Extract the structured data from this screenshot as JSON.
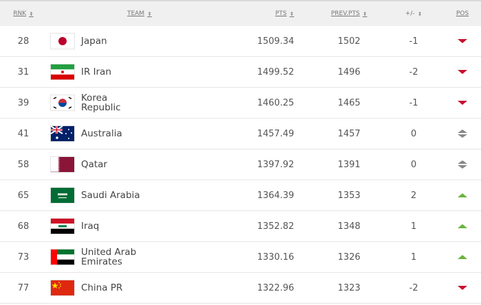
{
  "header": {
    "rnk": "RNK",
    "team": "TEAM",
    "pts": "PTS",
    "prev_pts": "PREV.PTS",
    "diff": "+/-",
    "pos": "POS",
    "sort_icon": "sort-arrows-icon"
  },
  "colors": {
    "down": "#c8102e",
    "up": "#6ab33e",
    "same": "#888888"
  },
  "rows": [
    {
      "rnk": "28",
      "team": "Japan",
      "pts": "1509.34",
      "prev": "1502",
      "diff": "-1",
      "pos": "down",
      "flag": "jp"
    },
    {
      "rnk": "31",
      "team": "IR Iran",
      "pts": "1499.52",
      "prev": "1496",
      "diff": "-2",
      "pos": "down",
      "flag": "ir"
    },
    {
      "rnk": "39",
      "team": "Korea Republic",
      "pts": "1460.25",
      "prev": "1465",
      "diff": "-1",
      "pos": "down",
      "flag": "kr"
    },
    {
      "rnk": "41",
      "team": "Australia",
      "pts": "1457.49",
      "prev": "1457",
      "diff": "0",
      "pos": "same",
      "flag": "au"
    },
    {
      "rnk": "58",
      "team": "Qatar",
      "pts": "1397.92",
      "prev": "1391",
      "diff": "0",
      "pos": "same",
      "flag": "qa"
    },
    {
      "rnk": "65",
      "team": "Saudi Arabia",
      "pts": "1364.39",
      "prev": "1353",
      "diff": "2",
      "pos": "up",
      "flag": "sa"
    },
    {
      "rnk": "68",
      "team": "Iraq",
      "pts": "1352.82",
      "prev": "1348",
      "diff": "1",
      "pos": "up",
      "flag": "iq"
    },
    {
      "rnk": "73",
      "team": "United Arab Emirates",
      "pts": "1330.16",
      "prev": "1326",
      "diff": "1",
      "pos": "up",
      "flag": "ae"
    },
    {
      "rnk": "77",
      "team": "China PR",
      "pts": "1322.96",
      "prev": "1323",
      "diff": "-2",
      "pos": "down",
      "flag": "cn"
    }
  ]
}
